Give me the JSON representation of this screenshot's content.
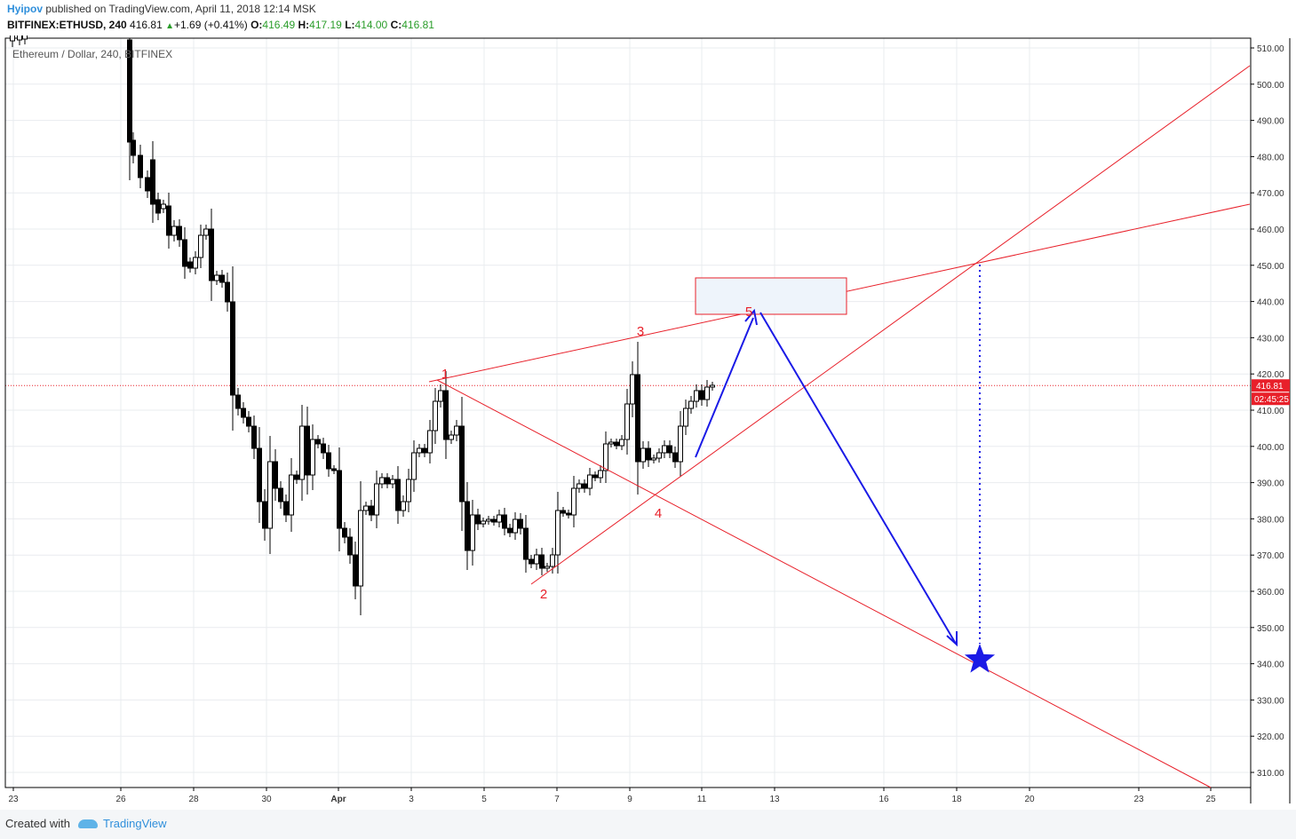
{
  "header": {
    "author": "Hyipov",
    "published": "published on TradingView.com, April 11, 2018 12:14 MSK",
    "symbol": "BITFINEX:ETHUSD, 240",
    "last": "416.81",
    "change": "+1.69 (+0.41%)",
    "o_label": "O:",
    "o_val": "416.49",
    "h_label": "H:",
    "h_val": "417.19",
    "l_label": "L:",
    "l_val": "414.00",
    "c_label": "C:",
    "c_val": "416.81"
  },
  "chart_data": {
    "type": "candlestick",
    "title": "Ethereum / Dollar, 240, BITFINEX",
    "ylim": [
      305,
      512
    ],
    "y_ticks": [
      "510.00",
      "500.00",
      "490.00",
      "480.00",
      "470.00",
      "460.00",
      "450.00",
      "440.00",
      "430.00",
      "420.00",
      "410.00",
      "400.00",
      "390.00",
      "380.00",
      "370.00",
      "360.00",
      "350.00",
      "340.00",
      "330.00",
      "320.00",
      "310.00"
    ],
    "x_ticks": [
      "23",
      "26",
      "28",
      "30",
      "Apr",
      "3",
      "5",
      "7",
      "9",
      "11",
      "13",
      "16",
      "18",
      "20",
      "23",
      "25"
    ],
    "price_tag": "416.81",
    "timer_tag": "02:45:25",
    "current_price": 416.81,
    "wave_labels": [
      "1",
      "2",
      "3",
      "4",
      "5"
    ],
    "colors": {
      "grid": "#e9ecef",
      "trend": "#e8202a",
      "projection": "#1a1ae6",
      "price_line": "#e8202a",
      "bull": "#ffffff",
      "bear": "#000000"
    }
  },
  "footer": {
    "created": "Created with",
    "brand": "TradingView"
  }
}
